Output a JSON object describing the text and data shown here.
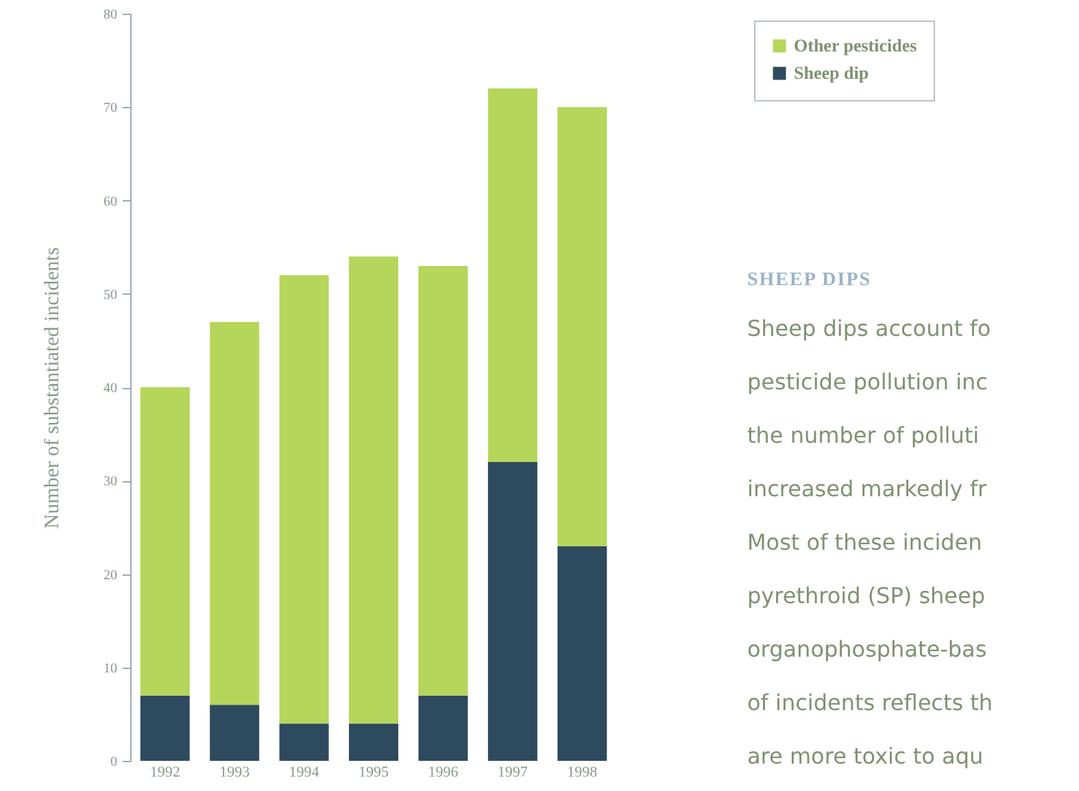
{
  "chart_data": {
    "type": "bar",
    "stacked": true,
    "ylabel": "Number of substantiated incidents",
    "categories": [
      "1992",
      "1993",
      "1994",
      "1995",
      "1996",
      "1997",
      "1998"
    ],
    "series": [
      {
        "name": "Sheep dip",
        "color": "#2e4a5e",
        "values": [
          7,
          6,
          4,
          4,
          7,
          32,
          23
        ]
      },
      {
        "name": "Other pesticides",
        "color": "#b5d65a",
        "values": [
          33,
          41,
          48,
          50,
          46,
          40,
          47
        ]
      }
    ],
    "ylim": [
      0,
      80
    ],
    "yticks": [
      0,
      10,
      20,
      30,
      40,
      50,
      60,
      70,
      80
    ],
    "legend": "top right",
    "annotations": [
      "SHEEP DIPS",
      "Sheep dips account fo",
      "pesticide pollution inc",
      "the number of polluti",
      "increased markedly fr",
      "Most of these inciden",
      "pyrethroid (SP) sheep",
      "organophosphate-bas",
      "of incidents reflects th",
      "are more toxic to aqu"
    ]
  }
}
